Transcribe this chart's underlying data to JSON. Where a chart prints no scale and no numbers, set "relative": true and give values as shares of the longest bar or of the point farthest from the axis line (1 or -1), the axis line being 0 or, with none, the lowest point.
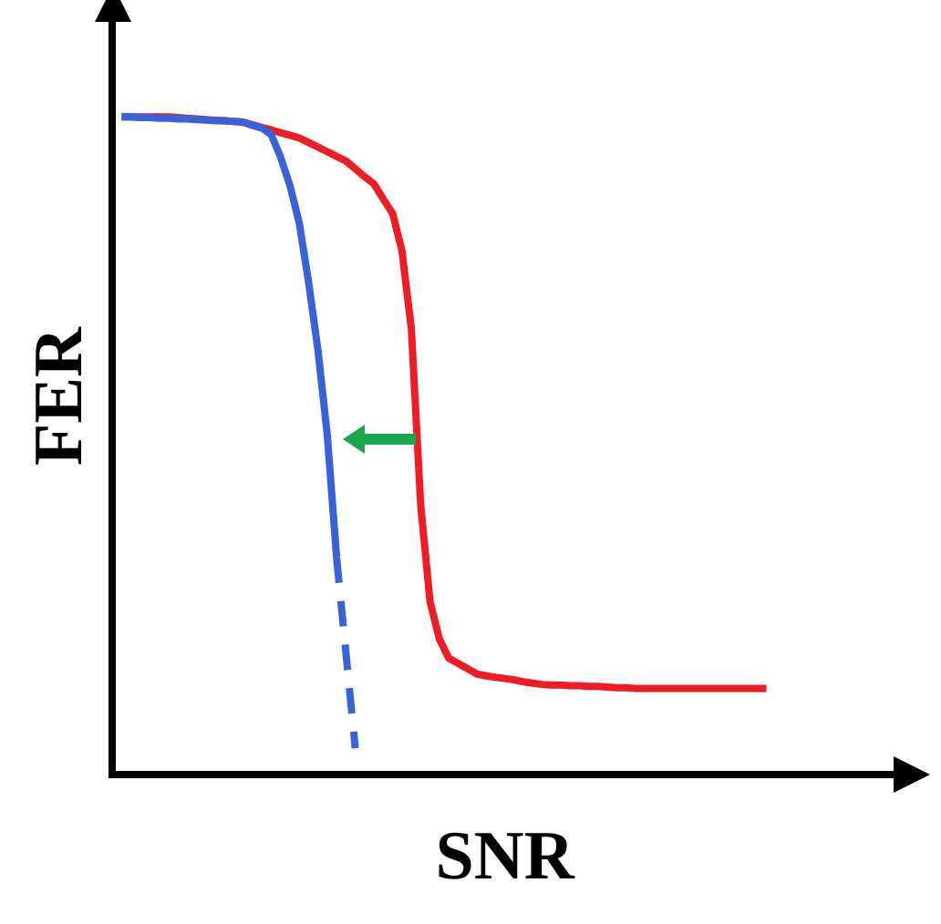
{
  "chart_data": {
    "type": "line",
    "relative": true,
    "xlabel": "SNR",
    "ylabel": "FER",
    "grid": false,
    "marker": "none",
    "categories": [
      null,
      null,
      null,
      null,
      null,
      null,
      null,
      null,
      null,
      null,
      null,
      null,
      null,
      null,
      null,
      null,
      null,
      null,
      null,
      null,
      null,
      null,
      null,
      null,
      null,
      null,
      null,
      null,
      null,
      null,
      null,
      null,
      null,
      null,
      null,
      null,
      null,
      null,
      null,
      null,
      null,
      null,
      null,
      null,
      null,
      null,
      null,
      null,
      null,
      null,
      null,
      null,
      null,
      null,
      null,
      null,
      null,
      null,
      null,
      null,
      null,
      null,
      null,
      null,
      null,
      null,
      null,
      null,
      null,
      null,
      null,
      null,
      null,
      null,
      null,
      null,
      null,
      null,
      null,
      null,
      null,
      null,
      null,
      null,
      null
    ],
    "series": [
      {
        "color": "#ee1c25",
        "line_style": "solid",
        "values": [
          null,
          1,
          1,
          1,
          1,
          1,
          1,
          0.999,
          0.998,
          0.997,
          0.996,
          0.995,
          0.994,
          0.993,
          0.992,
          0.988,
          0.984,
          0.98,
          0.976,
          0.972,
          0.968,
          0.961,
          0.954,
          0.947,
          0.94,
          0.933,
          0.921,
          0.909,
          0.898,
          0.875,
          0.853,
          0.796,
          0.678,
          0.41,
          0.263,
          0.206,
          0.177,
          0.169,
          0.161,
          0.153,
          0.15,
          0.148,
          0.146,
          0.144,
          0.141,
          0.139,
          0.137,
          0.136,
          0.136,
          0.135,
          0.135,
          0.134,
          0.134,
          0.133,
          0.132,
          0.132,
          0.131,
          0.131,
          0.131,
          0.131,
          0.131,
          0.131,
          0.131,
          0.131,
          0.131,
          0.131,
          0.131,
          0.131,
          0.131,
          0.131,
          0.131,
          null,
          null,
          null,
          null,
          null,
          null,
          null,
          null,
          null,
          null,
          null,
          null,
          null,
          null
        ]
      },
      {
        "color": "#3a62d8",
        "line_style": "solid",
        "values": [
          null,
          1,
          1,
          0.999,
          0.999,
          0.998,
          0.998,
          0.997,
          0.997,
          0.996,
          0.995,
          0.994,
          0.994,
          0.993,
          0.992,
          0.987,
          0.983,
          0.973,
          0.939,
          0.896,
          0.839,
          0.749,
          0.646,
          0.517,
          0.33,
          null,
          null,
          null,
          null,
          null,
          null,
          null,
          null,
          null,
          null,
          null,
          null,
          null,
          null,
          null,
          null,
          null,
          null,
          null,
          null,
          null,
          null,
          null,
          null,
          null,
          null,
          null,
          null,
          null,
          null,
          null,
          null,
          null,
          null,
          null,
          null,
          null,
          null,
          null,
          null,
          null,
          null,
          null,
          null,
          null,
          null,
          null,
          null,
          null,
          null,
          null,
          null,
          null,
          null,
          null,
          null,
          null,
          null,
          null,
          null
        ]
      },
      {
        "color": "#3a62d8",
        "line_style": "dashed",
        "values": [
          null,
          null,
          null,
          null,
          null,
          null,
          null,
          null,
          null,
          null,
          null,
          null,
          null,
          null,
          null,
          null,
          null,
          null,
          null,
          null,
          null,
          null,
          null,
          null,
          0.33,
          0.185,
          0.04,
          null,
          null,
          null,
          null,
          null,
          null,
          null,
          null,
          null,
          null,
          null,
          null,
          null,
          null,
          null,
          null,
          null,
          null,
          null,
          null,
          null,
          null,
          null,
          null,
          null,
          null,
          null,
          null,
          null,
          null,
          null,
          null,
          null,
          null,
          null,
          null,
          null,
          null,
          null,
          null,
          null,
          null,
          null,
          null,
          null,
          null,
          null,
          null,
          null,
          null,
          null,
          null,
          null,
          null,
          null,
          null,
          null,
          null
        ]
      }
    ]
  }
}
